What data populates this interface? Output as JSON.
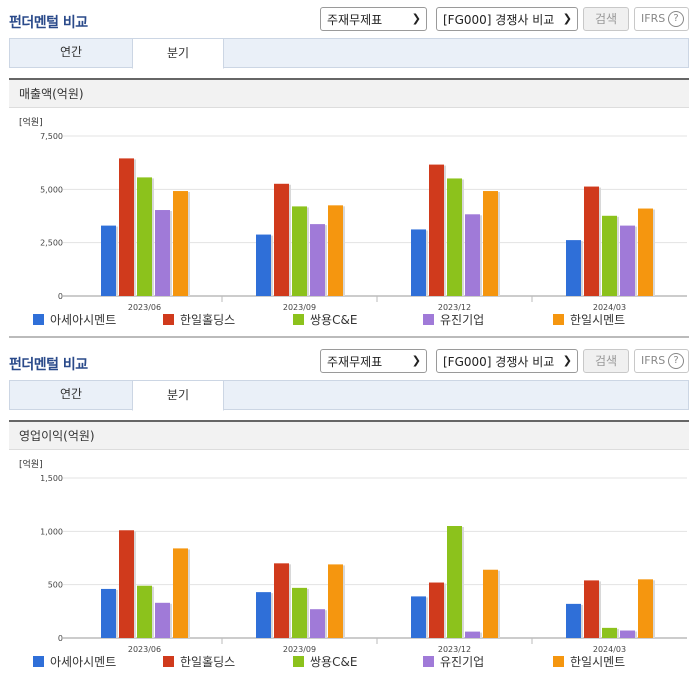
{
  "panels": [
    {
      "title": "펀더멘털 비교",
      "select1": "주재무제표",
      "select2": "[FG000] 경쟁사 비교",
      "search_label": "검색",
      "ifrs_label": "IFRS",
      "help_label": "?",
      "tabs": [
        "연간",
        "분기"
      ],
      "active_tab": "분기",
      "subtitle": "매출액(억원)"
    },
    {
      "title": "펀더멘털 비교",
      "select1": "주재무제표",
      "select2": "[FG000] 경쟁사 비교",
      "search_label": "검색",
      "ifrs_label": "IFRS",
      "help_label": "?",
      "tabs": [
        "연간",
        "분기"
      ],
      "active_tab": "분기",
      "subtitle": "영업이익(억원)"
    }
  ],
  "chevron_icon": "chevron-down-icon",
  "chart_data": [
    {
      "type": "bar",
      "ylabel": "[억원]",
      "ylim": [
        0,
        7500
      ],
      "yticks": [
        "0",
        "2,500",
        "5,000",
        "7,500"
      ],
      "ytick_values": [
        0,
        2500,
        5000,
        7500
      ],
      "categories": [
        "2023/06",
        "2023/09",
        "2023/12",
        "2024/03"
      ],
      "series": [
        {
          "name": "아세아시멘트",
          "color": "#2f6fd8",
          "values": [
            3300,
            2880,
            3120,
            2620
          ]
        },
        {
          "name": "한일홀딩스",
          "color": "#d03a1c",
          "values": [
            6450,
            5260,
            6160,
            5130
          ]
        },
        {
          "name": "쌍용C&E",
          "color": "#8cc21c",
          "values": [
            5560,
            4200,
            5510,
            3760
          ]
        },
        {
          "name": "유진기업",
          "color": "#a07ad8",
          "values": [
            4030,
            3370,
            3830,
            3300
          ]
        },
        {
          "name": "한일시멘트",
          "color": "#f5960f",
          "values": [
            4920,
            4250,
            4920,
            4100
          ]
        }
      ],
      "legend": "bottom"
    },
    {
      "type": "bar",
      "ylabel": "[억원]",
      "ylim": [
        0,
        1500
      ],
      "yticks": [
        "0",
        "500",
        "1,000",
        "1,500"
      ],
      "ytick_values": [
        0,
        500,
        1000,
        1500
      ],
      "categories": [
        "2023/06",
        "2023/09",
        "2023/12",
        "2024/03"
      ],
      "series": [
        {
          "name": "아세아시멘트",
          "color": "#2f6fd8",
          "values": [
            460,
            430,
            390,
            320
          ]
        },
        {
          "name": "한일홀딩스",
          "color": "#d03a1c",
          "values": [
            1010,
            700,
            520,
            540
          ]
        },
        {
          "name": "쌍용C&E",
          "color": "#8cc21c",
          "values": [
            490,
            470,
            1050,
            95
          ]
        },
        {
          "name": "유진기업",
          "color": "#a07ad8",
          "values": [
            330,
            270,
            60,
            70
          ]
        },
        {
          "name": "한일시멘트",
          "color": "#f5960f",
          "values": [
            840,
            690,
            640,
            550
          ]
        }
      ],
      "legend": "bottom"
    }
  ]
}
